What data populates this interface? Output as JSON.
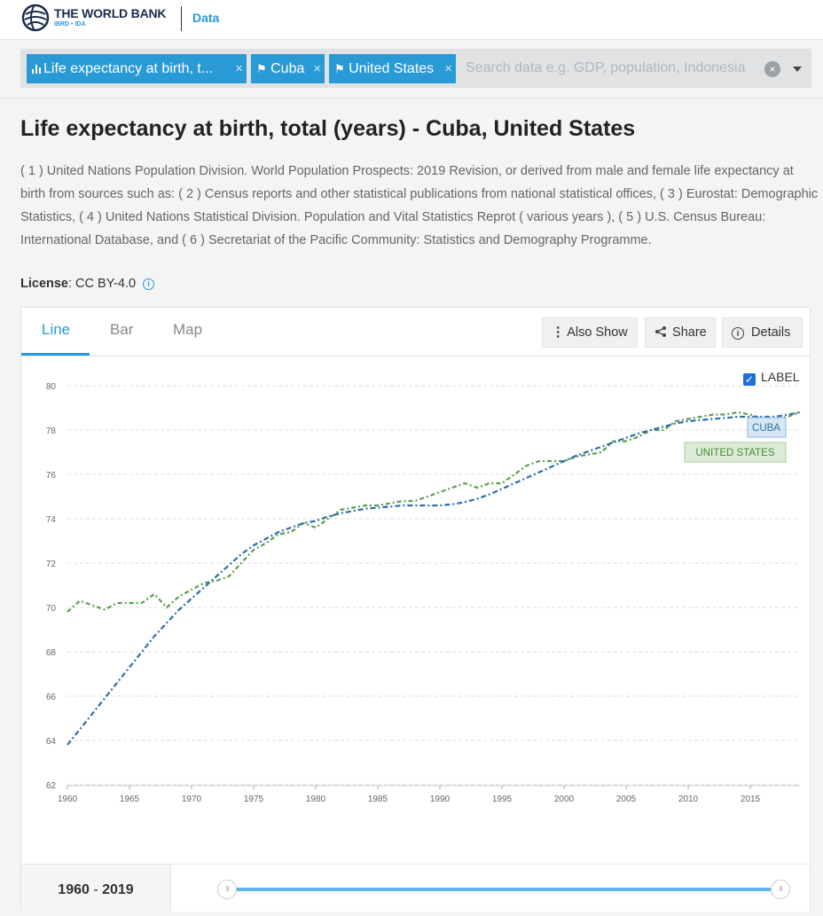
{
  "header": {
    "brand": "THE WORLD BANK",
    "brand_sub": "IBRD • IDA",
    "nav_link": "Data",
    "logo_icon": "globe-icon"
  },
  "search": {
    "chips": [
      {
        "label": "Life expectancy at birth, t...",
        "icon": "bar-chart-icon"
      },
      {
        "label": "Cuba",
        "icon": "location-pin-icon"
      },
      {
        "label": "United States",
        "icon": "location-pin-icon"
      }
    ],
    "placeholder": "Search data e.g. GDP, population, Indonesia",
    "remove_glyph": "×",
    "clear_glyph": "×"
  },
  "page": {
    "title": "Life expectancy at birth, total (years) - Cuba, United States",
    "description": "( 1 ) United Nations Population Division. World Population Prospects: 2019 Revision, or derived from male and female life expectancy at birth from sources such as: ( 2 ) Census reports and other statistical publications from national statistical offices, ( 3 ) Eurostat: Demographic Statistics, ( 4 ) United Nations Statistical Division. Population and Vital Statistics Reprot ( various years ), ( 5 ) U.S. Census Bureau: International Database, and ( 6 ) Secretariat of the Pacific Community: Statistics and Demography Programme.",
    "license_label": "License",
    "license_value": ": CC BY-4.0"
  },
  "tabs": [
    "Line",
    "Bar",
    "Map"
  ],
  "toolbar": {
    "also_show": "Also Show",
    "share": "Share",
    "details": "Details"
  },
  "label_toggle": {
    "text": "LABEL",
    "checked": true
  },
  "range": {
    "start": "1960",
    "sep": " - ",
    "end": "2019"
  },
  "colors": {
    "accent": "#2a9ad6",
    "cuba": "#2f6fad",
    "united_states": "#5a9e4d"
  },
  "chart_data": {
    "type": "line",
    "x": [
      1960,
      1961,
      1962,
      1963,
      1964,
      1965,
      1966,
      1967,
      1968,
      1969,
      1970,
      1971,
      1972,
      1973,
      1974,
      1975,
      1976,
      1977,
      1978,
      1979,
      1980,
      1981,
      1982,
      1983,
      1984,
      1985,
      1986,
      1987,
      1988,
      1989,
      1990,
      1991,
      1992,
      1993,
      1994,
      1995,
      1996,
      1997,
      1998,
      1999,
      2000,
      2001,
      2002,
      2003,
      2004,
      2005,
      2006,
      2007,
      2008,
      2009,
      2010,
      2011,
      2012,
      2013,
      2014,
      2015,
      2016,
      2017,
      2018,
      2019
    ],
    "series": [
      {
        "name": "CUBA",
        "color": "#2f6fad",
        "values": [
          63.8,
          64.5,
          65.2,
          65.9,
          66.6,
          67.3,
          68.0,
          68.7,
          69.3,
          69.9,
          70.4,
          70.9,
          71.4,
          71.9,
          72.4,
          72.8,
          73.1,
          73.4,
          73.6,
          73.8,
          73.9,
          74.1,
          74.25,
          74.35,
          74.45,
          74.5,
          74.55,
          74.6,
          74.6,
          74.6,
          74.6,
          74.65,
          74.75,
          74.9,
          75.1,
          75.35,
          75.6,
          75.85,
          76.1,
          76.35,
          76.6,
          76.85,
          77.05,
          77.25,
          77.45,
          77.65,
          77.85,
          78.0,
          78.15,
          78.3,
          78.4,
          78.45,
          78.5,
          78.55,
          78.6,
          78.6,
          78.6,
          78.6,
          78.7,
          78.8
        ]
      },
      {
        "name": "UNITED STATES",
        "color": "#5a9e4d",
        "values": [
          69.8,
          70.3,
          70.1,
          69.9,
          70.2,
          70.2,
          70.2,
          70.6,
          70.0,
          70.5,
          70.8,
          71.1,
          71.2,
          71.4,
          72.0,
          72.6,
          72.9,
          73.3,
          73.4,
          73.8,
          73.6,
          74.0,
          74.4,
          74.5,
          74.6,
          74.6,
          74.7,
          74.8,
          74.8,
          75.0,
          75.2,
          75.4,
          75.6,
          75.4,
          75.6,
          75.6,
          76.0,
          76.4,
          76.6,
          76.6,
          76.6,
          76.8,
          76.9,
          77.0,
          77.5,
          77.5,
          77.7,
          78.0,
          78.0,
          78.4,
          78.5,
          78.6,
          78.7,
          78.7,
          78.8,
          78.7,
          78.5,
          78.5,
          78.6,
          78.8
        ]
      }
    ],
    "x_ticks": [
      1960,
      1965,
      1970,
      1975,
      1980,
      1985,
      1990,
      1995,
      2000,
      2005,
      2010,
      2015
    ],
    "y_ticks": [
      62,
      64,
      66,
      68,
      70,
      72,
      74,
      76,
      78,
      80
    ],
    "xlim": [
      1960,
      2019
    ],
    "ylim": [
      62,
      80
    ],
    "title": "",
    "xlabel": "",
    "ylabel": "",
    "grid": "horizontal dashed",
    "labels": [
      "CUBA",
      "UNITED STATES"
    ]
  }
}
